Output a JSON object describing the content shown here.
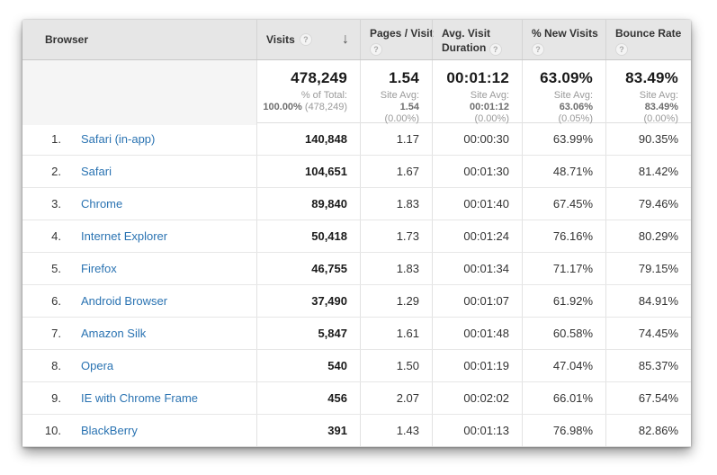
{
  "icons": {
    "help": "?",
    "sort_desc": "↓"
  },
  "colors": {
    "link": "#2a73b2",
    "header_bg": "#e6e6e6"
  },
  "table": {
    "columns": [
      {
        "label": "Browser"
      },
      {
        "label": "Visits",
        "sorted": "descending"
      },
      {
        "label": "Pages / Visit"
      },
      {
        "label": "Avg. Visit Duration"
      },
      {
        "label": "% New Visits"
      },
      {
        "label": "Bounce Rate"
      }
    ],
    "summary": {
      "visits": {
        "value": "478,249",
        "label": "% of Total:",
        "strong": "100.00%",
        "paren": "(478,249)"
      },
      "pages_per_visit": {
        "value": "1.54",
        "label": "Site Avg:",
        "strong": "1.54",
        "paren": "(0.00%)"
      },
      "avg_visit_duration": {
        "value": "00:01:12",
        "label": "Site Avg:",
        "strong": "00:01:12",
        "paren": "(0.00%)"
      },
      "pct_new_visits": {
        "value": "63.09%",
        "label": "Site Avg:",
        "strong": "63.06%",
        "paren": "(0.05%)"
      },
      "bounce_rate": {
        "value": "83.49%",
        "label": "Site Avg:",
        "strong": "83.49%",
        "paren": "(0.00%)"
      }
    },
    "rows": [
      {
        "rank": "1.",
        "browser": "Safari (in-app)",
        "visits": "140,848",
        "pages_per_visit": "1.17",
        "avg_visit_duration": "00:00:30",
        "pct_new_visits": "63.99%",
        "bounce_rate": "90.35%"
      },
      {
        "rank": "2.",
        "browser": "Safari",
        "visits": "104,651",
        "pages_per_visit": "1.67",
        "avg_visit_duration": "00:01:30",
        "pct_new_visits": "48.71%",
        "bounce_rate": "81.42%"
      },
      {
        "rank": "3.",
        "browser": "Chrome",
        "visits": "89,840",
        "pages_per_visit": "1.83",
        "avg_visit_duration": "00:01:40",
        "pct_new_visits": "67.45%",
        "bounce_rate": "79.46%"
      },
      {
        "rank": "4.",
        "browser": "Internet Explorer",
        "visits": "50,418",
        "pages_per_visit": "1.73",
        "avg_visit_duration": "00:01:24",
        "pct_new_visits": "76.16%",
        "bounce_rate": "80.29%"
      },
      {
        "rank": "5.",
        "browser": "Firefox",
        "visits": "46,755",
        "pages_per_visit": "1.83",
        "avg_visit_duration": "00:01:34",
        "pct_new_visits": "71.17%",
        "bounce_rate": "79.15%"
      },
      {
        "rank": "6.",
        "browser": "Android Browser",
        "visits": "37,490",
        "pages_per_visit": "1.29",
        "avg_visit_duration": "00:01:07",
        "pct_new_visits": "61.92%",
        "bounce_rate": "84.91%"
      },
      {
        "rank": "7.",
        "browser": "Amazon Silk",
        "visits": "5,847",
        "pages_per_visit": "1.61",
        "avg_visit_duration": "00:01:48",
        "pct_new_visits": "60.58%",
        "bounce_rate": "74.45%"
      },
      {
        "rank": "8.",
        "browser": "Opera",
        "visits": "540",
        "pages_per_visit": "1.50",
        "avg_visit_duration": "00:01:19",
        "pct_new_visits": "47.04%",
        "bounce_rate": "85.37%"
      },
      {
        "rank": "9.",
        "browser": "IE with Chrome Frame",
        "visits": "456",
        "pages_per_visit": "2.07",
        "avg_visit_duration": "00:02:02",
        "pct_new_visits": "66.01%",
        "bounce_rate": "67.54%"
      },
      {
        "rank": "10.",
        "browser": "BlackBerry",
        "visits": "391",
        "pages_per_visit": "1.43",
        "avg_visit_duration": "00:01:13",
        "pct_new_visits": "76.98%",
        "bounce_rate": "82.86%"
      }
    ]
  }
}
